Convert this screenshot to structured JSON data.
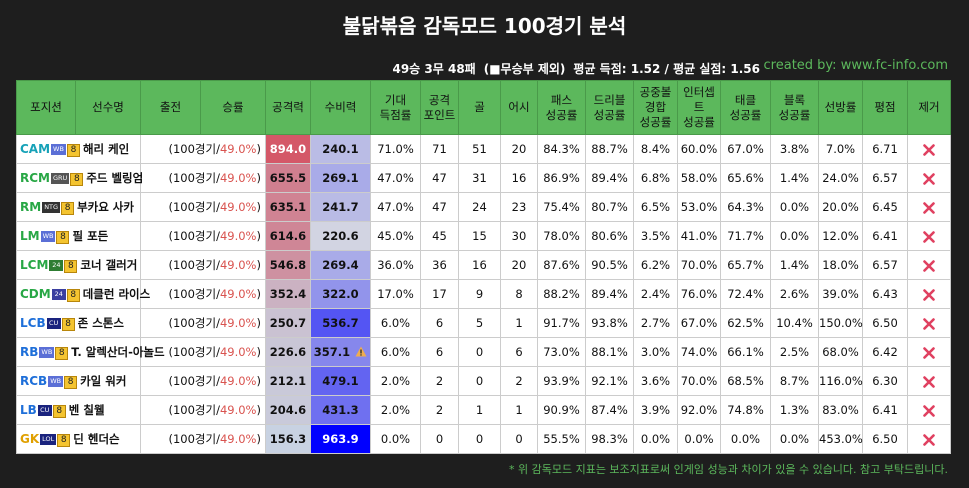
{
  "header": {
    "title": "불닭볶음 감독모드 100경기 분석",
    "record": "49승 3무 48패",
    "record_note": "(■무승부 제외)",
    "averages": "평균 득점: 1.52 / 평균 실점: 1.56",
    "credit": "created by: www.fc-info.com"
  },
  "table": {
    "columns": [
      "포지션",
      "선수명",
      "출전",
      "승률",
      "공격력",
      "수비력",
      "기대\n득점률",
      "공격\n포인트",
      "골",
      "어시",
      "패스\n성공률",
      "드리블\n성공률",
      "공중볼\n경합\n성공률",
      "인터셉트\n성공률",
      "태클\n성공률",
      "블록\n성공률",
      "선방률",
      "평점",
      "제거"
    ],
    "rows": [
      {
        "position": "CAM",
        "pos_color": "#17a2b8",
        "season": "WB",
        "season_color": "#5b6fd6",
        "level": "8",
        "name": "해리 케인",
        "games": "(100경기/",
        "win_rate": "49.0%",
        "close": ")",
        "stats": [
          "894.0",
          "240.1",
          "71.0%",
          "71",
          "51",
          "20",
          "84.3%",
          "88.7%",
          "8.4%",
          "60.0%",
          "67.0%",
          "3.8%",
          "7.0%",
          "6.71"
        ]
      },
      {
        "position": "RCM",
        "pos_color": "#28a745",
        "season": "GRU",
        "season_color": "#555555",
        "level": "8",
        "name": "주드 벨링엄",
        "games": "(100경기/",
        "win_rate": "49.0%",
        "close": ")",
        "stats": [
          "655.5",
          "269.1",
          "47.0%",
          "47",
          "31",
          "16",
          "86.9%",
          "89.4%",
          "6.8%",
          "58.0%",
          "65.6%",
          "1.4%",
          "24.0%",
          "6.57"
        ]
      },
      {
        "position": "RM",
        "pos_color": "#28a745",
        "season": "NTG",
        "season_color": "#333333",
        "level": "8",
        "name": "부카요 사카",
        "games": "(100경기/",
        "win_rate": "49.0%",
        "close": ")",
        "stats": [
          "635.1",
          "241.7",
          "47.0%",
          "47",
          "24",
          "23",
          "75.4%",
          "80.7%",
          "6.5%",
          "53.0%",
          "64.3%",
          "0.0%",
          "20.0%",
          "6.45"
        ]
      },
      {
        "position": "LM",
        "pos_color": "#28a745",
        "season": "WB",
        "season_color": "#5b6fd6",
        "level": "8",
        "name": "필 포든",
        "games": "(100경기/",
        "win_rate": "49.0%",
        "close": ")",
        "stats": [
          "614.6",
          "220.6",
          "45.0%",
          "45",
          "15",
          "30",
          "78.0%",
          "80.6%",
          "3.5%",
          "41.0%",
          "71.7%",
          "0.0%",
          "12.0%",
          "6.41"
        ]
      },
      {
        "position": "LCM",
        "pos_color": "#28a745",
        "season": "24",
        "season_color": "#2e7d32",
        "level": "8",
        "name": "코너 갤러거",
        "games": "(100경기/",
        "win_rate": "49.0%",
        "close": ")",
        "stats": [
          "546.8",
          "269.4",
          "36.0%",
          "36",
          "16",
          "20",
          "87.6%",
          "90.5%",
          "6.2%",
          "70.0%",
          "65.7%",
          "1.4%",
          "18.0%",
          "6.57"
        ]
      },
      {
        "position": "CDM",
        "pos_color": "#28a745",
        "season": "24",
        "season_color": "#3b3fa0",
        "level": "8",
        "name": "데클런 라이스",
        "games": "(100경기/",
        "win_rate": "49.0%",
        "close": ")",
        "stats": [
          "352.4",
          "322.0",
          "17.0%",
          "17",
          "9",
          "8",
          "88.2%",
          "89.4%",
          "2.4%",
          "76.0%",
          "72.4%",
          "2.6%",
          "39.0%",
          "6.43"
        ]
      },
      {
        "position": "LCB",
        "pos_color": "#1e6fd9",
        "season": "CU",
        "season_color": "#1a237e",
        "level": "8",
        "name": "존 스톤스",
        "games": "(100경기/",
        "win_rate": "49.0%",
        "close": ")",
        "stats": [
          "250.7",
          "536.7",
          "6.0%",
          "6",
          "5",
          "1",
          "91.7%",
          "93.8%",
          "2.7%",
          "67.0%",
          "62.5%",
          "10.4%",
          "150.0%",
          "6.50"
        ]
      },
      {
        "position": "RB",
        "pos_color": "#1e6fd9",
        "season": "WB",
        "season_color": "#5b6fd6",
        "level": "8",
        "name": "T. 알렉산더-아놀드",
        "games": "(100경기/",
        "win_rate": "49.0%",
        "close": ")",
        "warning": true,
        "stats": [
          "226.6",
          "357.1",
          "6.0%",
          "6",
          "0",
          "6",
          "73.0%",
          "88.1%",
          "3.0%",
          "74.0%",
          "66.1%",
          "2.5%",
          "68.0%",
          "6.42"
        ]
      },
      {
        "position": "RCB",
        "pos_color": "#1e6fd9",
        "season": "WB",
        "season_color": "#5b6fd6",
        "level": "8",
        "name": "카일 워커",
        "games": "(100경기/",
        "win_rate": "49.0%",
        "close": ")",
        "stats": [
          "212.1",
          "479.1",
          "2.0%",
          "2",
          "0",
          "2",
          "93.9%",
          "92.1%",
          "3.6%",
          "70.0%",
          "68.5%",
          "8.7%",
          "116.0%",
          "6.30"
        ]
      },
      {
        "position": "LB",
        "pos_color": "#1e6fd9",
        "season": "CU",
        "season_color": "#1a237e",
        "level": "8",
        "name": "벤 칠웰",
        "games": "(100경기/",
        "win_rate": "49.0%",
        "close": ")",
        "stats": [
          "204.6",
          "431.3",
          "2.0%",
          "2",
          "1",
          "1",
          "90.9%",
          "87.4%",
          "3.9%",
          "92.0%",
          "74.8%",
          "1.3%",
          "83.0%",
          "6.41"
        ]
      },
      {
        "position": "GK",
        "pos_color": "#e0a000",
        "season": "LOL",
        "season_color": "#1a237e",
        "level": "8",
        "name": "딘 헨더슨",
        "games": "(100경기/",
        "win_rate": "49.0%",
        "close": ")",
        "stats": [
          "156.3",
          "963.9",
          "0.0%",
          "0",
          "0",
          "0",
          "55.5%",
          "98.3%",
          "0.0%",
          "0.0%",
          "0.0%",
          "0.0%",
          "453.0%",
          "6.50"
        ]
      }
    ]
  },
  "footnote": "* 위 감독모드 지표는 보조지표로써 인게임 성능과 차이가 있을 수 있습니다. 참고 부탁드립니다."
}
